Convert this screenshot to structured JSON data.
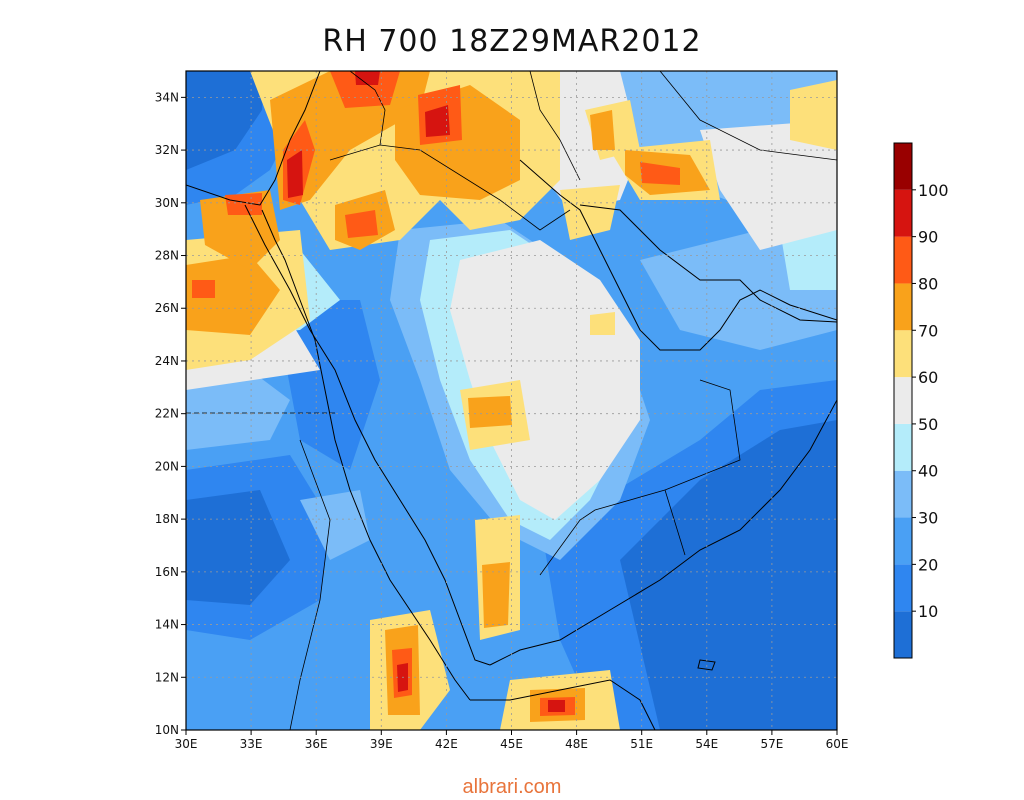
{
  "title": "RH 700 18Z29MAR2012",
  "watermark": "albrari.com",
  "map": {
    "variable": "Relative Humidity at 700 hPa",
    "lon_range": [
      30,
      60
    ],
    "lat_range": [
      10,
      35
    ],
    "lon_ticks": [
      "30E",
      "33E",
      "36E",
      "39E",
      "42E",
      "45E",
      "48E",
      "51E",
      "54E",
      "57E",
      "60E"
    ],
    "lat_ticks": [
      "10N",
      "12N",
      "14N",
      "16N",
      "18N",
      "20N",
      "22N",
      "24N",
      "26N",
      "28N",
      "30N",
      "32N",
      "34N"
    ],
    "grid": "dotted"
  },
  "colorbar": {
    "labels": [
      "10",
      "20",
      "30",
      "40",
      "50",
      "60",
      "70",
      "80",
      "90",
      "100"
    ],
    "colors": [
      "#1e6fd6",
      "#2f86f0",
      "#4aa0f4",
      "#7bbcf8",
      "#b4ecfa",
      "#ebebeb",
      "#fde07a",
      "#f9a21b",
      "#ff5a16",
      "#d61410",
      "#990000"
    ]
  }
}
